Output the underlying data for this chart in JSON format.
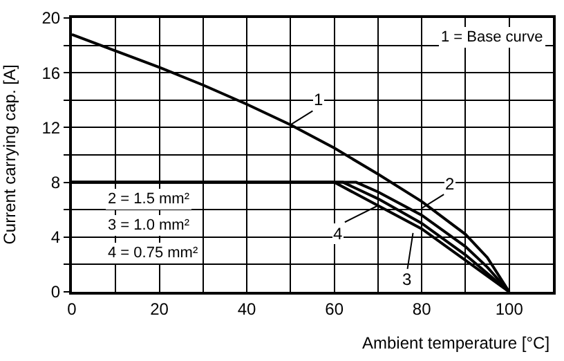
{
  "chart_data": {
    "type": "line",
    "xlabel": "Ambient temperature [°C]",
    "ylabel": "Current carrying cap. [A]",
    "series": [
      {
        "color": "#000000",
        "x": [
          0,
          10,
          20,
          30,
          40,
          50,
          60,
          70,
          80,
          90,
          95,
          100
        ],
        "values": [
          18.8,
          17.6,
          16.4,
          15.1,
          13.7,
          12.2,
          10.5,
          8.6,
          6.6,
          4.2,
          2.5,
          0
        ]
      },
      {
        "color": "#000000",
        "x": [
          0,
          65,
          70,
          80,
          90,
          95,
          100
        ],
        "values": [
          8,
          8,
          7.3,
          5.6,
          3.3,
          1.8,
          0
        ]
      },
      {
        "color": "#000000",
        "x": [
          0,
          62,
          70,
          80,
          90,
          100
        ],
        "values": [
          8,
          8,
          6.8,
          5.0,
          2.7,
          0
        ]
      },
      {
        "color": "#000000",
        "x": [
          0,
          60,
          70,
          80,
          90,
          100
        ],
        "values": [
          8,
          8,
          6.3,
          4.6,
          2.3,
          0
        ]
      }
    ],
    "annotations": [
      {
        "text": "1",
        "x": 50,
        "y": 12.2
      },
      {
        "text": "2",
        "x": 80,
        "y": 6.1
      },
      {
        "text": "3",
        "x": 78,
        "y": 4.3
      },
      {
        "text": "4",
        "x": 70,
        "y": 6.3
      },
      "1 = Base curve",
      "2 = 1.5 mm²",
      "3 = 1.0 mm²",
      "4 = 0.75 mm²"
    ],
    "xlim": [
      0,
      110
    ],
    "ylim": [
      0,
      20
    ],
    "xticks": [
      0,
      {
        "value": 10,
        "label": null
      },
      20,
      {
        "value": 30,
        "label": null
      },
      40,
      {
        "value": 50,
        "label": null
      },
      60,
      {
        "value": 70,
        "label": null
      },
      80,
      {
        "value": 90,
        "label": null
      },
      100
    ],
    "yticks": [
      0,
      {
        "value": 2,
        "label": null
      },
      4,
      {
        "value": 6,
        "label": null
      },
      8,
      {
        "value": 10,
        "label": null
      },
      12,
      {
        "value": 14,
        "label": null
      },
      16,
      {
        "value": 18,
        "label": null
      },
      20
    ],
    "grid": true,
    "line_style": "solid",
    "marker": "none"
  }
}
